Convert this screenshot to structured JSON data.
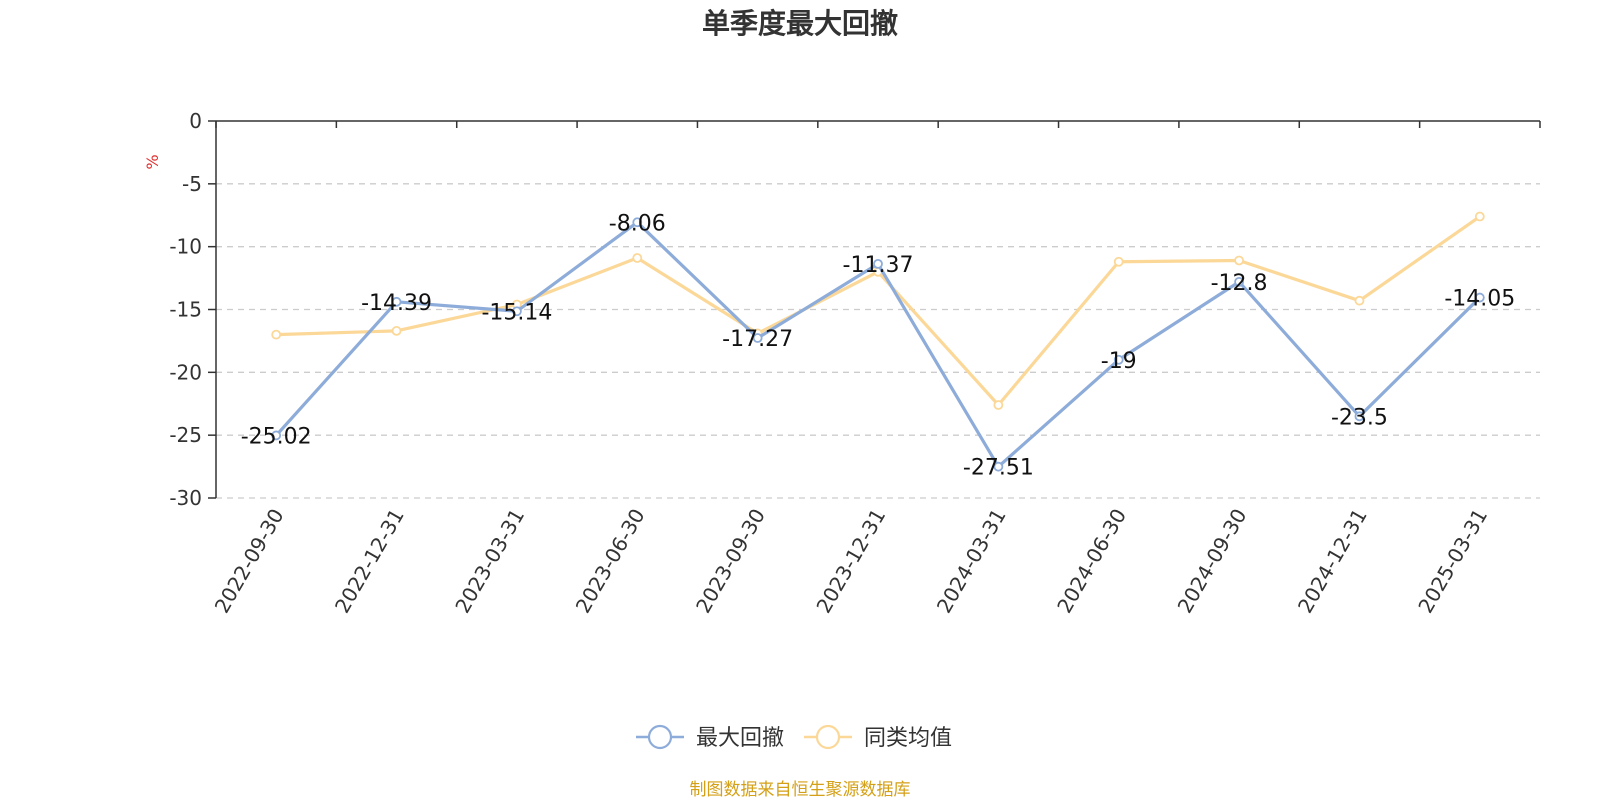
{
  "chart_data": {
    "type": "line",
    "title": "单季度最大回撤",
    "ylabel": "%",
    "xlabel": "",
    "categories": [
      "2022-09-30",
      "2022-12-31",
      "2023-03-31",
      "2023-06-30",
      "2023-09-30",
      "2023-12-31",
      "2024-03-31",
      "2024-06-30",
      "2024-09-30",
      "2024-12-31",
      "2025-03-31"
    ],
    "ylim": [
      -30,
      0
    ],
    "yticks": [
      0,
      -5,
      -10,
      -15,
      -20,
      -25,
      -30
    ],
    "grid": true,
    "legend_position": "bottom-center",
    "series": [
      {
        "name": "最大回撤",
        "color": "#8eacd9",
        "values": [
          -25.02,
          -14.39,
          -15.14,
          -8.06,
          -17.27,
          -11.37,
          -27.51,
          -19,
          -12.8,
          -23.5,
          -14.05
        ],
        "labels": [
          "-25.02",
          "-14.39",
          "-15.14",
          "-8.06",
          "-17.27",
          "-11.37",
          "-27.51",
          "-19",
          "-12.8",
          "-23.5",
          "-14.05"
        ],
        "show_labels": true
      },
      {
        "name": "同类均值",
        "color": "#fbd898",
        "values": [
          -17.0,
          -16.7,
          -14.6,
          -10.9,
          -16.9,
          -12.0,
          -22.6,
          -11.2,
          -11.1,
          -14.3,
          -7.6
        ],
        "show_labels": false
      }
    ],
    "source": "制图数据来自恒生聚源数据库",
    "source_color": "#d4a017"
  }
}
